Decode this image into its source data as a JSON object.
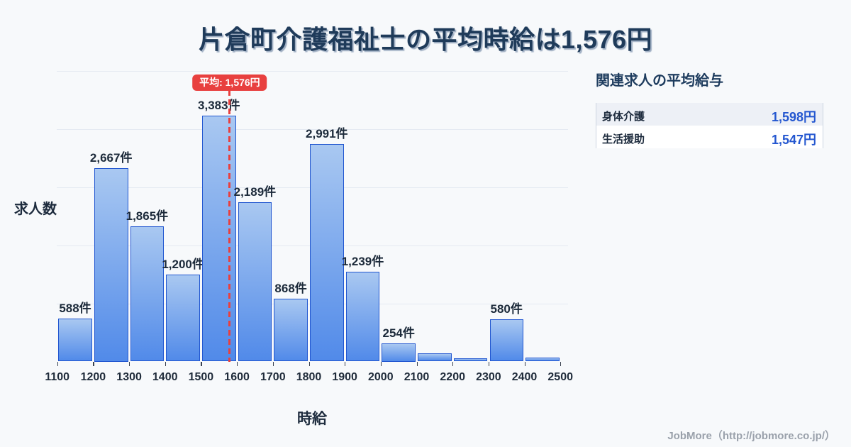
{
  "page": {
    "title": "片倉町介護福祉士の平均時給は1,576円",
    "footer_credit": "JobMore（http://jobmore.co.jp/）"
  },
  "chart_data": {
    "type": "bar",
    "subtype": "histogram",
    "title": "片倉町介護福祉士の平均時給は1,576円",
    "xlabel": "時給",
    "ylabel": "求人数",
    "x_tick_labels": [
      "1100",
      "1200",
      "1300",
      "1400",
      "1500",
      "1600",
      "1700",
      "1800",
      "1900",
      "2000",
      "2100",
      "2200",
      "2300",
      "2400",
      "2500"
    ],
    "bin_edges": [
      1100,
      1200,
      1300,
      1400,
      1500,
      1600,
      1700,
      1800,
      1900,
      2000,
      2100,
      2200,
      2300,
      2400,
      2500
    ],
    "bars": [
      {
        "bin": "1100-1200",
        "count": 588,
        "label": "588件"
      },
      {
        "bin": "1200-1300",
        "count": 2667,
        "label": "2,667件"
      },
      {
        "bin": "1300-1400",
        "count": 1865,
        "label": "1,865件"
      },
      {
        "bin": "1400-1500",
        "count": 1200,
        "label": "1,200件"
      },
      {
        "bin": "1500-1600",
        "count": 3383,
        "label": "3,383件"
      },
      {
        "bin": "1600-1700",
        "count": 2189,
        "label": "2,189件"
      },
      {
        "bin": "1700-1800",
        "count": 868,
        "label": "868件"
      },
      {
        "bin": "1800-1900",
        "count": 2991,
        "label": "2,991件"
      },
      {
        "bin": "1900-2000",
        "count": 1239,
        "label": "1,239件"
      },
      {
        "bin": "2000-2100",
        "count": 254,
        "label": "254件"
      },
      {
        "bin": "2100-2200",
        "count": 108,
        "label": ""
      },
      {
        "bin": "2200-2300",
        "count": 43,
        "label": ""
      },
      {
        "bin": "2300-2400",
        "count": 580,
        "label": "580件"
      },
      {
        "bin": "2400-2500",
        "count": 53,
        "label": ""
      }
    ],
    "average_line": {
      "value": 1576,
      "label": "平均: 1,576円",
      "style": "dashed",
      "color": "#e8403f"
    },
    "ylim": [
      0,
      4100
    ],
    "gridlines": [
      800,
      1600,
      2400,
      3200,
      4000
    ],
    "grid": true,
    "legend_position": "none",
    "bar_style": {
      "fill_top": "#a9c8f1",
      "fill_bottom": "#518ae9",
      "border": "#2156d0"
    }
  },
  "side_panel": {
    "heading": "関連求人の平均給与",
    "rows": [
      {
        "label": "身体介護",
        "value": "1,598円"
      },
      {
        "label": "生活援助",
        "value": "1,547円"
      }
    ]
  },
  "colors": {
    "background": "#f7f9fb",
    "title_text": "#1f3b5a",
    "axis_text": "#1e2c3e",
    "bar_border": "#2156d0",
    "average_red": "#e8403f",
    "table_value_blue": "#2457d0",
    "footer_gray": "#9aa1ab"
  }
}
